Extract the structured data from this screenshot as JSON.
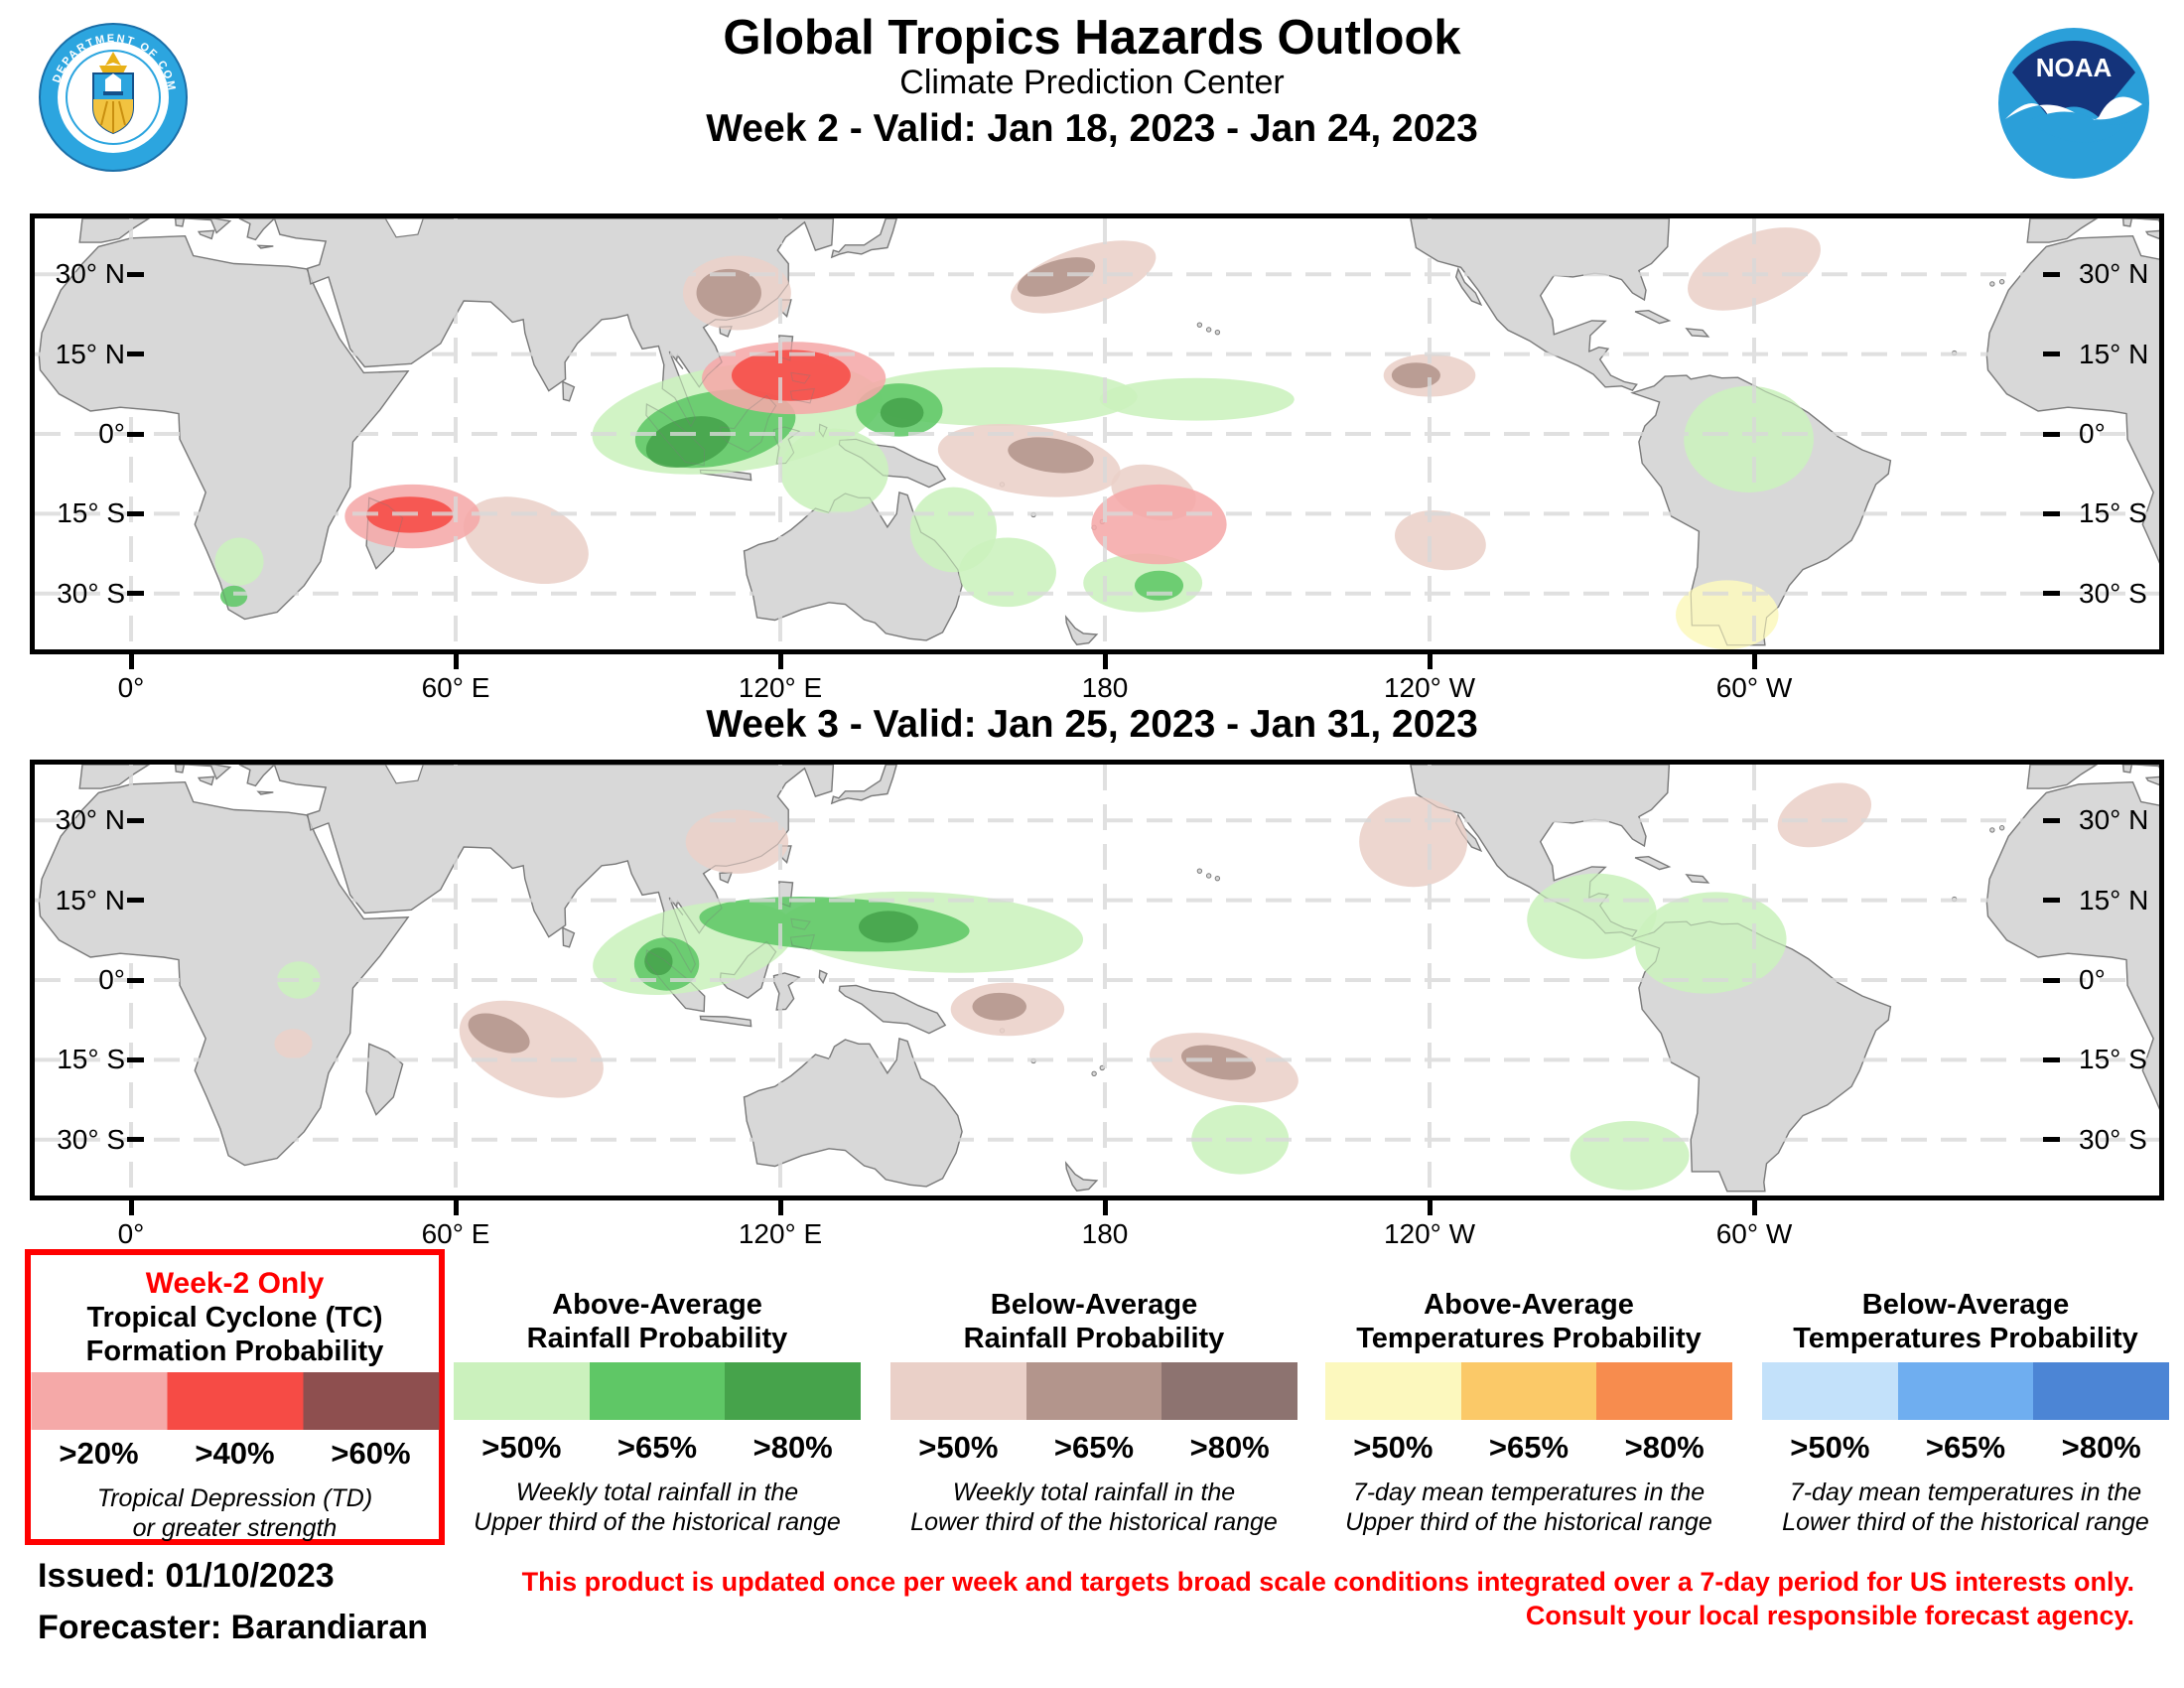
{
  "header": {
    "title": "Global Tropics Hazards Outlook",
    "subtitle": "Climate Prediction Center",
    "doc_seal": "doc-department-of-commerce-seal",
    "noaa_text": "NOAA"
  },
  "colors": {
    "tc": [
      "#F5A9A8",
      "#F64B45",
      "#8E4F4F"
    ],
    "rain_above": [
      "#CBF1BD",
      "#5FC766",
      "#46A34B"
    ],
    "rain_below": [
      "#EAD0C8",
      "#B3958C",
      "#8D7370"
    ],
    "temp_above": [
      "#FCF8BE",
      "#FBC968",
      "#F78C4E"
    ],
    "temp_below": [
      "#C3E1FA",
      "#6FAEF0",
      "#4C85D5"
    ],
    "land": "#D8D8D8",
    "land_border": "#7A7A7A",
    "grid": "#D9D9D9",
    "title_red": "#FF0000"
  },
  "panels": [
    {
      "title": "Week 2 - Valid: Jan 18, 2023 - Jan 24, 2023",
      "lat_ticks": [
        {
          "lat": 30,
          "label": "30° N"
        },
        {
          "lat": 15,
          "label": "15° N"
        },
        {
          "lat": 0,
          "label": "0°"
        },
        {
          "lat": -15,
          "label": "15° S"
        },
        {
          "lat": -30,
          "label": "30° S"
        }
      ],
      "lon_ticks": [
        {
          "lon": 0,
          "label": "0°"
        },
        {
          "lon": 60,
          "label": "60° E"
        },
        {
          "lon": 120,
          "label": "120° E"
        },
        {
          "lon": 180,
          "label": "180"
        },
        {
          "lon": 240,
          "label": "120° W"
        },
        {
          "lon": 300,
          "label": "60° W"
        }
      ],
      "regions": [
        {
          "type": "rain_above",
          "level": 1,
          "lon": 112,
          "lat": 3,
          "rx": 27,
          "ry": 10,
          "rot": -8,
          "name": "above-rain-indonesia-band"
        },
        {
          "type": "rain_above",
          "level": 1,
          "lon": 160,
          "lat": 7,
          "rx": 26,
          "ry": 5.5,
          "rot": 0,
          "name": "above-rain-west-pacific"
        },
        {
          "type": "rain_above",
          "level": 1,
          "lon": 197,
          "lat": 6.5,
          "rx": 18,
          "ry": 4,
          "rot": 0,
          "name": "above-rain-central-pacific-tail"
        },
        {
          "type": "rain_above",
          "level": 1,
          "lon": 130,
          "lat": -7,
          "rx": 10,
          "ry": 8,
          "rot": 0,
          "name": "above-rain-banda-sea"
        },
        {
          "type": "rain_above",
          "level": 1,
          "lon": 152,
          "lat": -18,
          "rx": 8,
          "ry": 8,
          "rot": 0,
          "name": "above-rain-coral-sea"
        },
        {
          "type": "rain_above",
          "level": 1,
          "lon": 162,
          "lat": -26,
          "rx": 9,
          "ry": 6.5,
          "rot": 0,
          "name": "above-rain-new-caledonia"
        },
        {
          "type": "rain_above",
          "level": 1,
          "lon": 187,
          "lat": -28,
          "rx": 11,
          "ry": 5.5,
          "rot": 0,
          "name": "above-rain-south-pacific"
        },
        {
          "type": "rain_above",
          "level": 2,
          "lon": 190,
          "lat": -28.5,
          "rx": 4.5,
          "ry": 2.8,
          "rot": 0,
          "name": "above-rain-south-pacific-core"
        },
        {
          "type": "rain_above",
          "level": 2,
          "lon": 108,
          "lat": 1,
          "rx": 15,
          "ry": 7,
          "rot": -10,
          "name": "above-rain-maritime-cont-65"
        },
        {
          "type": "rain_above",
          "level": 3,
          "lon": 103,
          "lat": -1.5,
          "rx": 8,
          "ry": 4.5,
          "rot": -15,
          "name": "above-rain-sumatra-borneo-80"
        },
        {
          "type": "rain_above",
          "level": 2,
          "lon": 142,
          "lat": 4.5,
          "rx": 8,
          "ry": 5,
          "rot": 0,
          "name": "above-rain-caroline-65"
        },
        {
          "type": "rain_above",
          "level": 3,
          "lon": 142.5,
          "lat": 4,
          "rx": 4,
          "ry": 2.8,
          "rot": 0,
          "name": "above-rain-caroline-80"
        },
        {
          "type": "rain_above",
          "level": 1,
          "lon": 20,
          "lat": -24,
          "rx": 4.5,
          "ry": 4.5,
          "rot": 0,
          "name": "above-rain-southern-africa"
        },
        {
          "type": "rain_above",
          "level": 2,
          "lon": 19,
          "lat": -30.5,
          "rx": 2.5,
          "ry": 2,
          "rot": 0,
          "name": "above-rain-south-africa-core"
        },
        {
          "type": "rain_above",
          "level": 1,
          "lon": 299,
          "lat": -1,
          "rx": 12,
          "ry": 10,
          "rot": 0,
          "name": "above-rain-amazon"
        },
        {
          "type": "rain_below",
          "level": 1,
          "lon": 112,
          "lat": 26.5,
          "rx": 10,
          "ry": 7,
          "rot": 0,
          "name": "below-rain-south-china"
        },
        {
          "type": "rain_below",
          "level": 2,
          "lon": 110.5,
          "lat": 26.5,
          "rx": 6,
          "ry": 4.5,
          "rot": 0,
          "name": "below-rain-south-china-core"
        },
        {
          "type": "rain_below",
          "level": 1,
          "lon": 73,
          "lat": -20,
          "rx": 12,
          "ry": 7.5,
          "rot": 20,
          "name": "below-rain-south-indian"
        },
        {
          "type": "rain_below",
          "level": 1,
          "lon": 166,
          "lat": -5,
          "rx": 17,
          "ry": 6.5,
          "rot": 8,
          "name": "below-rain-east-of-png"
        },
        {
          "type": "rain_below",
          "level": 2,
          "lon": 170,
          "lat": -4,
          "rx": 8,
          "ry": 3.2,
          "rot": 8,
          "name": "below-rain-east-of-png-core"
        },
        {
          "type": "rain_below",
          "level": 1,
          "lon": 189,
          "lat": -11,
          "rx": 8,
          "ry": 5,
          "rot": 15,
          "name": "below-rain-samoa"
        },
        {
          "type": "rain_below",
          "level": 1,
          "lon": 176,
          "lat": 29.5,
          "rx": 14,
          "ry": 5.5,
          "rot": -18,
          "name": "below-rain-north-pacific"
        },
        {
          "type": "rain_below",
          "level": 2,
          "lon": 171,
          "lat": 29.5,
          "rx": 7.5,
          "ry": 3,
          "rot": -18,
          "name": "below-rain-north-pacific-core"
        },
        {
          "type": "rain_below",
          "level": 1,
          "lon": 240,
          "lat": 11,
          "rx": 8.5,
          "ry": 4,
          "rot": 0,
          "name": "below-rain-east-pacific"
        },
        {
          "type": "rain_below",
          "level": 2,
          "lon": 237.5,
          "lat": 11,
          "rx": 4.5,
          "ry": 2.4,
          "rot": 0,
          "name": "below-rain-east-pacific-core"
        },
        {
          "type": "rain_below",
          "level": 1,
          "lon": 242,
          "lat": -20,
          "rx": 8.5,
          "ry": 5.5,
          "rot": 10,
          "name": "below-rain-southeast-pacific"
        },
        {
          "type": "rain_below",
          "level": 1,
          "lon": 300,
          "lat": 31,
          "rx": 13,
          "ry": 6.5,
          "rot": -22,
          "name": "below-rain-northwest-atlantic"
        },
        {
          "type": "temp_above",
          "level": 1,
          "lon": 295,
          "lat": -34,
          "rx": 9.5,
          "ry": 6.5,
          "rot": 0,
          "name": "above-temp-argentina"
        },
        {
          "type": "tc",
          "level": 1,
          "lon": 52,
          "lat": -15.5,
          "rx": 12.5,
          "ry": 6,
          "rot": 0,
          "name": "tc-20-madagascar"
        },
        {
          "type": "tc",
          "level": 2,
          "lon": 51.5,
          "lat": -15.2,
          "rx": 8,
          "ry": 3.4,
          "rot": 0,
          "name": "tc-40-madagascar"
        },
        {
          "type": "tc",
          "level": 1,
          "lon": 122.5,
          "lat": 10.5,
          "rx": 17,
          "ry": 6.8,
          "rot": 0,
          "name": "tc-20-philippines"
        },
        {
          "type": "tc",
          "level": 2,
          "lon": 122,
          "lat": 11,
          "rx": 11,
          "ry": 4.8,
          "rot": 0,
          "name": "tc-40-philippines"
        },
        {
          "type": "tc",
          "level": 1,
          "lon": 190,
          "lat": -17,
          "rx": 12.5,
          "ry": 7.5,
          "rot": 0,
          "name": "tc-20-south-pacific"
        }
      ]
    },
    {
      "title": "Week 3 - Valid: Jan 25, 2023 - Jan 31, 2023",
      "lat_ticks": [
        {
          "lat": 30,
          "label": "30° N"
        },
        {
          "lat": 15,
          "label": "15° N"
        },
        {
          "lat": 0,
          "label": "0°"
        },
        {
          "lat": -15,
          "label": "15° S"
        },
        {
          "lat": -30,
          "label": "30° S"
        }
      ],
      "lon_ticks": [
        {
          "lon": 0,
          "label": "0°"
        },
        {
          "lon": 60,
          "label": "60° E"
        },
        {
          "lon": 120,
          "label": "120° E"
        },
        {
          "lon": 180,
          "label": "180"
        },
        {
          "lon": 240,
          "label": "120° W"
        },
        {
          "lon": 300,
          "label": "60° W"
        }
      ],
      "regions": [
        {
          "type": "rain_above",
          "level": 1,
          "lon": 104,
          "lat": 6,
          "rx": 19,
          "ry": 8,
          "rot": -12,
          "name": "above-rain-bay-of-bengal-band"
        },
        {
          "type": "rain_above",
          "level": 1,
          "lon": 148,
          "lat": 9,
          "rx": 28,
          "ry": 7.5,
          "rot": 3,
          "name": "above-rain-west-pacific-band"
        },
        {
          "type": "rain_above",
          "level": 2,
          "lon": 130,
          "lat": 10.5,
          "rx": 25,
          "ry": 5,
          "rot": 3,
          "name": "above-rain-band-65"
        },
        {
          "type": "rain_above",
          "level": 2,
          "lon": 99,
          "lat": 3,
          "rx": 6,
          "ry": 5,
          "rot": 0,
          "name": "above-rain-sumatra-65"
        },
        {
          "type": "rain_above",
          "level": 3,
          "lon": 140,
          "lat": 10,
          "rx": 5.5,
          "ry": 3,
          "rot": 0,
          "name": "above-rain-band-80"
        },
        {
          "type": "rain_above",
          "level": 3,
          "lon": 97.5,
          "lat": 3.5,
          "rx": 2.6,
          "ry": 2.6,
          "rot": 0,
          "name": "above-rain-sumatra-80"
        },
        {
          "type": "rain_above",
          "level": 1,
          "lon": 31,
          "lat": 0,
          "rx": 4,
          "ry": 3.5,
          "rot": 0,
          "name": "above-rain-congo"
        },
        {
          "type": "rain_above",
          "level": 1,
          "lon": 270,
          "lat": 12,
          "rx": 12,
          "ry": 8,
          "rot": -5,
          "name": "above-rain-central-america"
        },
        {
          "type": "rain_above",
          "level": 1,
          "lon": 292,
          "lat": 7,
          "rx": 14,
          "ry": 9.5,
          "rot": -5,
          "name": "above-rain-north-south-america"
        },
        {
          "type": "rain_above",
          "level": 1,
          "lon": 205,
          "lat": -30,
          "rx": 9,
          "ry": 6.5,
          "rot": 0,
          "name": "above-rain-south-pacific"
        },
        {
          "type": "rain_above",
          "level": 1,
          "lon": 277,
          "lat": -33,
          "rx": 11,
          "ry": 6.5,
          "rot": 0,
          "name": "above-rain-chile-argentina"
        },
        {
          "type": "rain_below",
          "level": 1,
          "lon": 112,
          "lat": 26,
          "rx": 9.5,
          "ry": 6,
          "rot": 0,
          "name": "below-rain-south-china"
        },
        {
          "type": "rain_below",
          "level": 1,
          "lon": 74,
          "lat": -13,
          "rx": 14,
          "ry": 8,
          "rot": 22,
          "name": "below-rain-south-indian"
        },
        {
          "type": "rain_below",
          "level": 2,
          "lon": 68,
          "lat": -10,
          "rx": 6,
          "ry": 3.2,
          "rot": 22,
          "name": "below-rain-south-indian-core"
        },
        {
          "type": "rain_below",
          "level": 1,
          "lon": 162,
          "lat": -5.5,
          "rx": 10.5,
          "ry": 5,
          "rot": 0,
          "name": "below-rain-east-of-png"
        },
        {
          "type": "rain_below",
          "level": 2,
          "lon": 160.5,
          "lat": -5,
          "rx": 5,
          "ry": 2.6,
          "rot": 0,
          "name": "below-rain-east-of-png-core"
        },
        {
          "type": "rain_below",
          "level": 1,
          "lon": 202,
          "lat": -16.5,
          "rx": 14,
          "ry": 6,
          "rot": 12,
          "name": "below-rain-south-central-pacific"
        },
        {
          "type": "rain_below",
          "level": 2,
          "lon": 201,
          "lat": -15.5,
          "rx": 7,
          "ry": 3,
          "rot": 12,
          "name": "below-rain-south-central-pacific-core"
        },
        {
          "type": "rain_below",
          "level": 1,
          "lon": 237,
          "lat": 26,
          "rx": 10,
          "ry": 8.5,
          "rot": 0,
          "name": "below-rain-west-of-baja"
        },
        {
          "type": "rain_below",
          "level": 1,
          "lon": 313,
          "lat": 31,
          "rx": 9,
          "ry": 5.5,
          "rot": -20,
          "name": "below-rain-central-atlantic"
        },
        {
          "type": "rain_below",
          "level": 1,
          "lon": 30,
          "lat": -12,
          "rx": 3.5,
          "ry": 2.8,
          "rot": 0,
          "name": "below-rain-zambia"
        }
      ]
    }
  ],
  "legend": {
    "groups": [
      {
        "week2_only": "Week-2 Only",
        "title1": "Tropical Cyclone (TC)",
        "title2": "Formation Probability",
        "palette": "tc",
        "labels": [
          ">20%",
          ">40%",
          ">60%"
        ],
        "note1": "Tropical Depression (TD)",
        "note2": "or greater strength"
      },
      {
        "title1": "Above-Average",
        "title2": "Rainfall Probability",
        "palette": "rain_above",
        "labels": [
          ">50%",
          ">65%",
          ">80%"
        ],
        "note1": "Weekly total rainfall in the",
        "note2": "Upper third of the historical range"
      },
      {
        "title1": "Below-Average",
        "title2": "Rainfall Probability",
        "palette": "rain_below",
        "labels": [
          ">50%",
          ">65%",
          ">80%"
        ],
        "note1": "Weekly total rainfall in the",
        "note2": "Lower third of the historical range"
      },
      {
        "title1": "Above-Average",
        "title2": "Temperatures Probability",
        "palette": "temp_above",
        "labels": [
          ">50%",
          ">65%",
          ">80%"
        ],
        "note1": "7-day mean temperatures in the",
        "note2": "Upper third of the historical range"
      },
      {
        "title1": "Below-Average",
        "title2": "Temperatures Probability",
        "palette": "temp_below",
        "labels": [
          ">50%",
          ">65%",
          ">80%"
        ],
        "note1": "7-day mean temperatures in the",
        "note2": "Lower third of the historical range"
      }
    ]
  },
  "footer": {
    "issued": "Issued: 01/10/2023",
    "forecaster": "Forecaster: Barandiaran",
    "disclaimer1": "This product is updated once per week and targets broad scale conditions integrated over a 7-day period for US interests only.",
    "disclaimer2": "Consult your local responsible forecast agency."
  }
}
